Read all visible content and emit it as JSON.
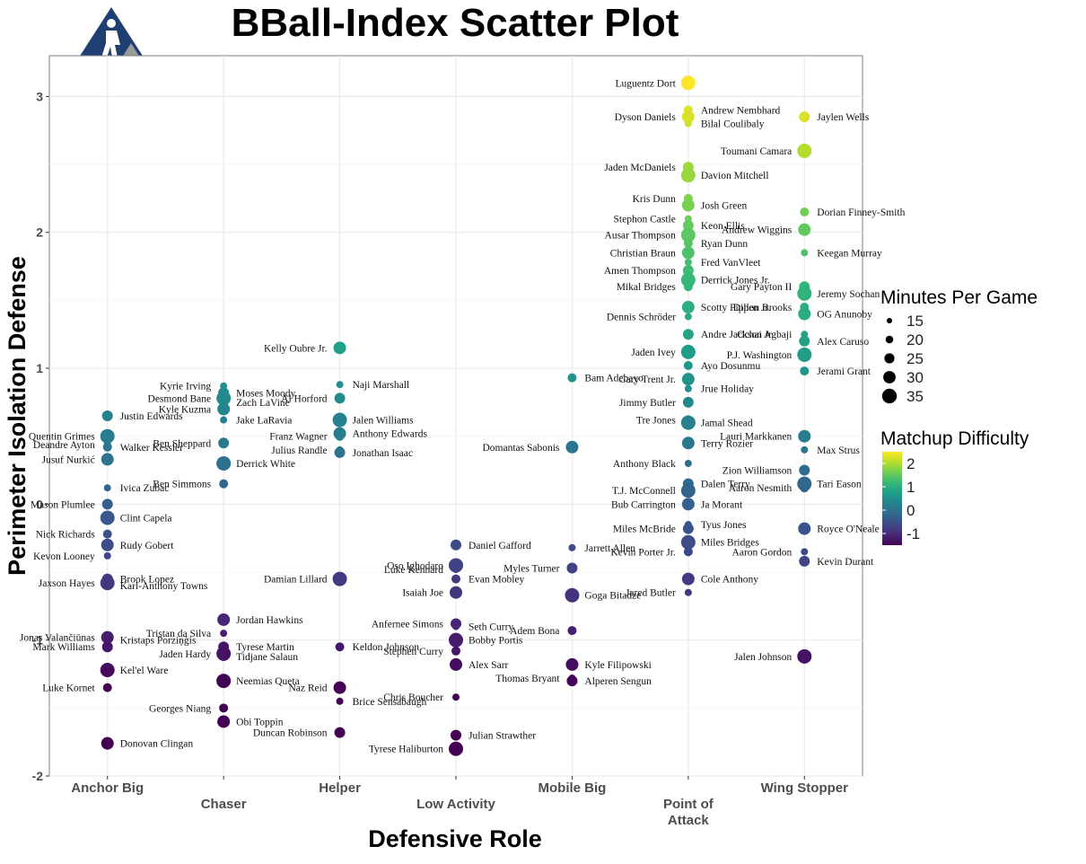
{
  "chart_data": {
    "type": "scatter",
    "title": "BBall-Index Scatter Plot",
    "xlabel": "Defensive Role",
    "ylabel": "Perimeter Isolation Defense",
    "categories": [
      "Anchor Big",
      "Chaser",
      "Helper",
      "Low Activity",
      "Mobile Big",
      "Point of Attack",
      "Wing Stopper"
    ],
    "ylim": [
      -2.0,
      3.3
    ],
    "yticks": [
      -2,
      -1,
      0,
      1,
      2,
      3
    ],
    "grid": true,
    "legend": {
      "size_title": "Minutes Per Game",
      "size_values": [
        15,
        20,
        25,
        30,
        35
      ],
      "color_title": "Matchup Difficulty",
      "color_ticks": [
        2,
        1,
        0,
        -1
      ],
      "color_range": [
        -1.5,
        2.5
      ],
      "placement": "right"
    },
    "colors": {
      "viridis": [
        "#440154",
        "#482878",
        "#3e4989",
        "#31688e",
        "#26828e",
        "#1f9e89",
        "#35b779",
        "#6ece58",
        "#b5de2b",
        "#fde725"
      ],
      "grid": "#ebebeb",
      "panel_border": "#7f7f7f",
      "logo_blue": "#1f3f73",
      "logo_gray": "#9a9a9a"
    },
    "labels": [
      {
        "cat": "Anchor Big",
        "name": "Deandre Ayton",
        "y": 0.44
      },
      {
        "cat": "Anchor Big",
        "name": "Justin Edwards",
        "y": 0.65
      },
      {
        "cat": "Anchor Big",
        "name": "Quentin Grimes",
        "y": 0.5
      },
      {
        "cat": "Anchor Big",
        "name": "Walker Kessler",
        "y": 0.42
      },
      {
        "cat": "Anchor Big",
        "name": "Jusuf Nurkić",
        "y": 0.33
      },
      {
        "cat": "Anchor Big",
        "name": "Ivica Zubac",
        "y": 0.12
      },
      {
        "cat": "Anchor Big",
        "name": "Mason Plumlee",
        "y": 0.0
      },
      {
        "cat": "Anchor Big",
        "name": "Clint Capela",
        "y": -0.1
      },
      {
        "cat": "Anchor Big",
        "name": "Nick Richards",
        "y": -0.22
      },
      {
        "cat": "Anchor Big",
        "name": "Rudy Gobert",
        "y": -0.3
      },
      {
        "cat": "Anchor Big",
        "name": "Kevon Looney",
        "y": -0.38
      },
      {
        "cat": "Anchor Big",
        "name": "Brook Lopez",
        "y": -0.55
      },
      {
        "cat": "Anchor Big",
        "name": "Jaxson Hayes",
        "y": -0.58
      },
      {
        "cat": "Anchor Big",
        "name": "Karl-Anthony Towns",
        "y": -0.6
      },
      {
        "cat": "Anchor Big",
        "name": "Jonas Valančiūnas",
        "y": -0.98
      },
      {
        "cat": "Anchor Big",
        "name": "Kristaps Porziņģis",
        "y": -1.0
      },
      {
        "cat": "Anchor Big",
        "name": "Mark Williams",
        "y": -1.05
      },
      {
        "cat": "Anchor Big",
        "name": "Kel'el Ware",
        "y": -1.22
      },
      {
        "cat": "Anchor Big",
        "name": "Luke Kornet",
        "y": -1.35
      },
      {
        "cat": "Anchor Big",
        "name": "Donovan Clingan",
        "y": -1.76
      },
      {
        "cat": "Chaser",
        "name": "Kyrie Irving",
        "y": 0.87
      },
      {
        "cat": "Chaser",
        "name": "Moses Moody",
        "y": 0.82
      },
      {
        "cat": "Chaser",
        "name": "Desmond Bane",
        "y": 0.78
      },
      {
        "cat": "Chaser",
        "name": "Zach LaVine",
        "y": 0.75
      },
      {
        "cat": "Chaser",
        "name": "Kyle Kuzma",
        "y": 0.7
      },
      {
        "cat": "Chaser",
        "name": "Jake LaRavia",
        "y": 0.62
      },
      {
        "cat": "Chaser",
        "name": "Ben Sheppard",
        "y": 0.45
      },
      {
        "cat": "Chaser",
        "name": "Derrick White",
        "y": 0.3
      },
      {
        "cat": "Chaser",
        "name": "Ben Simmons",
        "y": 0.15
      },
      {
        "cat": "Chaser",
        "name": "Jordan Hawkins",
        "y": -0.85
      },
      {
        "cat": "Chaser",
        "name": "Tristan da Silva",
        "y": -0.95
      },
      {
        "cat": "Chaser",
        "name": "Tyrese Martin",
        "y": -1.05
      },
      {
        "cat": "Chaser",
        "name": "Jaden Hardy",
        "y": -1.1
      },
      {
        "cat": "Chaser",
        "name": "Tidjane Salaun",
        "y": -1.12
      },
      {
        "cat": "Helper",
        "name": "Kelly Oubre Jr.",
        "y": 1.15
      },
      {
        "cat": "Helper",
        "name": "Naji Marshall",
        "y": 0.88
      },
      {
        "cat": "Helper",
        "name": "Al Horford",
        "y": 0.78
      },
      {
        "cat": "Helper",
        "name": "Jalen Williams",
        "y": 0.62
      },
      {
        "cat": "Helper",
        "name": "Franz Wagner",
        "y": 0.5
      },
      {
        "cat": "Helper",
        "name": "Anthony Edwards",
        "y": 0.52
      },
      {
        "cat": "Helper",
        "name": "Julius Randle",
        "y": 0.4
      },
      {
        "cat": "Helper",
        "name": "Jonathan Isaac",
        "y": 0.38
      },
      {
        "cat": "Helper",
        "name": "Damian Lillard",
        "y": -0.55
      },
      {
        "cat": "Helper",
        "name": "Keldon Johnson",
        "y": -1.05
      },
      {
        "cat": "Helper",
        "name": "Naz Reid",
        "y": -1.35
      },
      {
        "cat": "Helper",
        "name": "Brice Sensabaugh",
        "y": -1.45
      },
      {
        "cat": "Helper",
        "name": "Duncan Robinson",
        "y": -1.68
      },
      {
        "cat": "Chaser",
        "name": "Neemias Queta",
        "y": -1.3
      },
      {
        "cat": "Chaser",
        "name": "Georges Niang",
        "y": -1.5
      },
      {
        "cat": "Chaser",
        "name": "Obi Toppin",
        "y": -1.6
      },
      {
        "cat": "Low Activity",
        "name": "Luke Kennard",
        "y": -0.48
      },
      {
        "cat": "Low Activity",
        "name": "Daniel Gafford",
        "y": -0.3
      },
      {
        "cat": "Low Activity",
        "name": "Oso Ighodaro",
        "y": -0.45
      },
      {
        "cat": "Low Activity",
        "name": "Evan Mobley",
        "y": -0.55
      },
      {
        "cat": "Low Activity",
        "name": "Isaiah Joe",
        "y": -0.65
      },
      {
        "cat": "Low Activity",
        "name": "Seth Curry",
        "y": -0.9
      },
      {
        "cat": "Low Activity",
        "name": "Anfernee Simons",
        "y": -0.88
      },
      {
        "cat": "Low Activity",
        "name": "Bobby Portis",
        "y": -1.0
      },
      {
        "cat": "Low Activity",
        "name": "Stephen Curry",
        "y": -1.08
      },
      {
        "cat": "Low Activity",
        "name": "Alex Sarr",
        "y": -1.18
      },
      {
        "cat": "Low Activity",
        "name": "Chris Boucher",
        "y": -1.42
      },
      {
        "cat": "Low Activity",
        "name": "Julian Strawther",
        "y": -1.7
      },
      {
        "cat": "Low Activity",
        "name": "Tyrese Haliburton",
        "y": -1.8
      },
      {
        "cat": "Mobile Big",
        "name": "Bam Adebayo",
        "y": 0.93
      },
      {
        "cat": "Mobile Big",
        "name": "Domantas Sabonis",
        "y": 0.42
      },
      {
        "cat": "Mobile Big",
        "name": "Jarrett Allen",
        "y": -0.32
      },
      {
        "cat": "Mobile Big",
        "name": "Myles Turner",
        "y": -0.47
      },
      {
        "cat": "Mobile Big",
        "name": "Goga Bitadze",
        "y": -0.67
      },
      {
        "cat": "Mobile Big",
        "name": "Adem Bona",
        "y": -0.93
      },
      {
        "cat": "Mobile Big",
        "name": "Kyle Filipowski",
        "y": -1.18
      },
      {
        "cat": "Mobile Big",
        "name": "Thomas Bryant",
        "y": -1.28
      },
      {
        "cat": "Mobile Big",
        "name": "Alperen Sengun",
        "y": -1.3
      },
      {
        "cat": "Point of Attack",
        "name": "Luguentz Dort",
        "y": 3.1
      },
      {
        "cat": "Point of Attack",
        "name": "Andrew Nembhard",
        "y": 2.9
      },
      {
        "cat": "Point of Attack",
        "name": "Dyson Daniels",
        "y": 2.85
      },
      {
        "cat": "Point of Attack",
        "name": "Bilal Coulibaly",
        "y": 2.8
      },
      {
        "cat": "Point of Attack",
        "name": "Jaden McDaniels",
        "y": 2.48
      },
      {
        "cat": "Point of Attack",
        "name": "Davion Mitchell",
        "y": 2.42
      },
      {
        "cat": "Point of Attack",
        "name": "Kris Dunn",
        "y": 2.25
      },
      {
        "cat": "Point of Attack",
        "name": "Josh Green",
        "y": 2.2
      },
      {
        "cat": "Point of Attack",
        "name": "Stephon Castle",
        "y": 2.1
      },
      {
        "cat": "Point of Attack",
        "name": "Keon Ellis",
        "y": 2.05
      },
      {
        "cat": "Point of Attack",
        "name": "Ausar Thompson",
        "y": 1.98
      },
      {
        "cat": "Point of Attack",
        "name": "Ryan Dunn",
        "y": 1.92
      },
      {
        "cat": "Point of Attack",
        "name": "Christian Braun",
        "y": 1.85
      },
      {
        "cat": "Point of Attack",
        "name": "Fred VanVleet",
        "y": 1.78
      },
      {
        "cat": "Point of Attack",
        "name": "Amen Thompson",
        "y": 1.72
      },
      {
        "cat": "Point of Attack",
        "name": "Derrick Jones Jr.",
        "y": 1.65
      },
      {
        "cat": "Point of Attack",
        "name": "Mikal Bridges",
        "y": 1.6
      },
      {
        "cat": "Point of Attack",
        "name": "Scotty Pippen Jr.",
        "y": 1.45
      },
      {
        "cat": "Point of Attack",
        "name": "Dennis Schröder",
        "y": 1.38
      },
      {
        "cat": "Point of Attack",
        "name": "Andre Jackson Jr.",
        "y": 1.25
      },
      {
        "cat": "Point of Attack",
        "name": "Jaden Ivey",
        "y": 1.12
      },
      {
        "cat": "Point of Attack",
        "name": "Ayo Dosunmu",
        "y": 1.02
      },
      {
        "cat": "Point of Attack",
        "name": "Gary Trent Jr.",
        "y": 0.92
      },
      {
        "cat": "Point of Attack",
        "name": "Jrue Holiday",
        "y": 0.85
      },
      {
        "cat": "Point of Attack",
        "name": "Jimmy Butler",
        "y": 0.75
      },
      {
        "cat": "Point of Attack",
        "name": "Jamal Shead",
        "y": 0.6
      },
      {
        "cat": "Point of Attack",
        "name": "Tre Jones",
        "y": 0.62
      },
      {
        "cat": "Point of Attack",
        "name": "Terry Rozier",
        "y": 0.45
      },
      {
        "cat": "Point of Attack",
        "name": "Anthony Black",
        "y": 0.3
      },
      {
        "cat": "Point of Attack",
        "name": "Dalen Terry",
        "y": 0.15
      },
      {
        "cat": "Point of Attack",
        "name": "T.J. McConnell",
        "y": 0.1
      },
      {
        "cat": "Point of Attack",
        "name": "Ja Morant",
        "y": 0.0
      },
      {
        "cat": "Point of Attack",
        "name": "Bub Carrington",
        "y": 0.0
      },
      {
        "cat": "Point of Attack",
        "name": "Tyus Jones",
        "y": -0.15
      },
      {
        "cat": "Point of Attack",
        "name": "Miles McBride",
        "y": -0.18
      },
      {
        "cat": "Point of Attack",
        "name": "Miles Bridges",
        "y": -0.28
      },
      {
        "cat": "Point of Attack",
        "name": "Kevin Porter Jr.",
        "y": -0.35
      },
      {
        "cat": "Point of Attack",
        "name": "Cole Anthony",
        "y": -0.55
      },
      {
        "cat": "Point of Attack",
        "name": "Jared Butler",
        "y": -0.65
      },
      {
        "cat": "Wing Stopper",
        "name": "Jaylen Wells",
        "y": 2.85
      },
      {
        "cat": "Wing Stopper",
        "name": "Toumani Camara",
        "y": 2.6
      },
      {
        "cat": "Wing Stopper",
        "name": "Dorian Finney-Smith",
        "y": 2.15
      },
      {
        "cat": "Wing Stopper",
        "name": "Andrew Wiggins",
        "y": 2.02
      },
      {
        "cat": "Wing Stopper",
        "name": "Keegan Murray",
        "y": 1.85
      },
      {
        "cat": "Wing Stopper",
        "name": "Gary Payton II",
        "y": 1.6
      },
      {
        "cat": "Wing Stopper",
        "name": "Jeremy Sochan",
        "y": 1.55
      },
      {
        "cat": "Wing Stopper",
        "name": "Dillon Brooks",
        "y": 1.45
      },
      {
        "cat": "Wing Stopper",
        "name": "OG Anunoby",
        "y": 1.4
      },
      {
        "cat": "Wing Stopper",
        "name": "Ochai Agbaji",
        "y": 1.25
      },
      {
        "cat": "Wing Stopper",
        "name": "Alex Caruso",
        "y": 1.2
      },
      {
        "cat": "Wing Stopper",
        "name": "P.J. Washington",
        "y": 1.1
      },
      {
        "cat": "Wing Stopper",
        "name": "Jerami Grant",
        "y": 0.98
      },
      {
        "cat": "Wing Stopper",
        "name": "Lauri Markkanen",
        "y": 0.5
      },
      {
        "cat": "Wing Stopper",
        "name": "Max Strus",
        "y": 0.4
      },
      {
        "cat": "Wing Stopper",
        "name": "Zion Williamson",
        "y": 0.25
      },
      {
        "cat": "Wing Stopper",
        "name": "Tari Eason",
        "y": 0.15
      },
      {
        "cat": "Wing Stopper",
        "name": "Aaron Nesmith",
        "y": 0.12
      },
      {
        "cat": "Wing Stopper",
        "name": "Royce O'Neale",
        "y": -0.18
      },
      {
        "cat": "Wing Stopper",
        "name": "Aaron Gordon",
        "y": -0.35
      },
      {
        "cat": "Wing Stopper",
        "name": "Kevin Durant",
        "y": -0.42
      },
      {
        "cat": "Wing Stopper",
        "name": "Jalen Johnson",
        "y": -1.12
      }
    ]
  }
}
